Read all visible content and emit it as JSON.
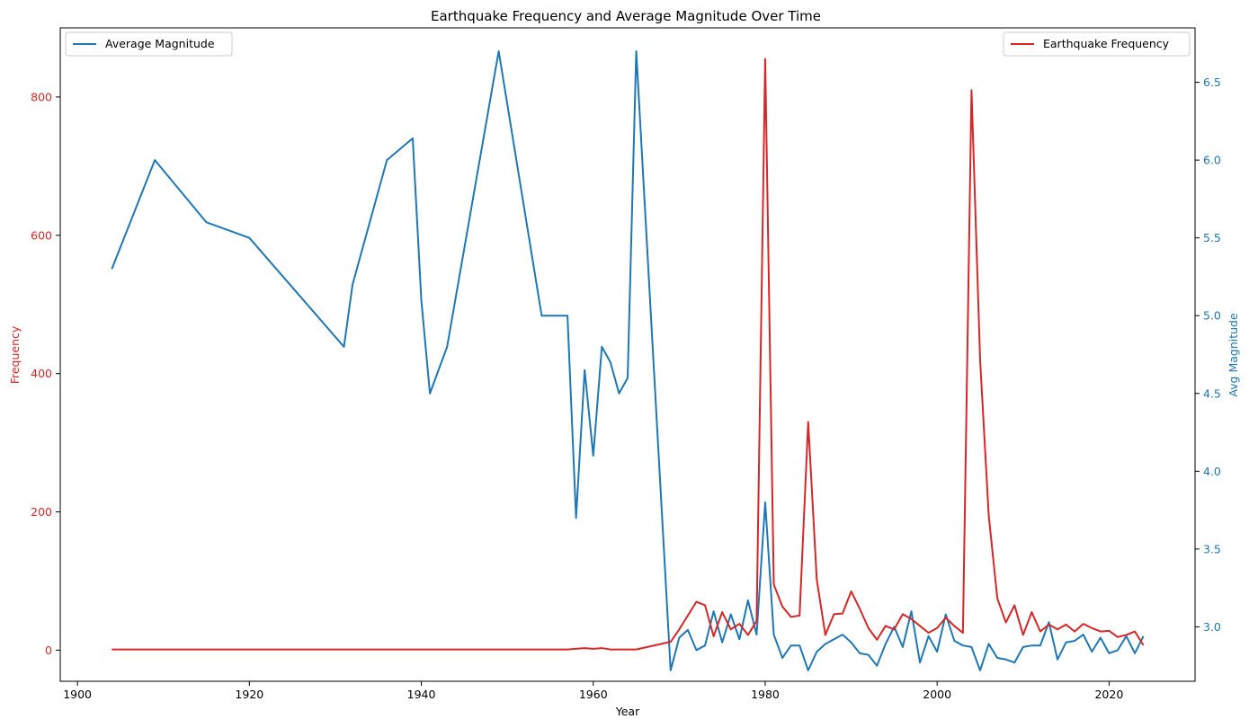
{
  "chart_data": {
    "type": "line",
    "title": "Earthquake Frequency and Average Magnitude Over Time",
    "xlabel": "Year",
    "ylabel_left": "Frequency",
    "ylabel_right": "Avg Magnitude",
    "xlim": [
      1898,
      2030
    ],
    "ylim_left": [
      -45,
      900
    ],
    "ylim_right": [
      2.65,
      6.85
    ],
    "x_ticks": [
      1900,
      1920,
      1940,
      1960,
      1980,
      2000,
      2020
    ],
    "y_left_ticks": [
      0,
      200,
      400,
      600,
      800
    ],
    "y_right_ticks": [
      3.0,
      3.5,
      4.0,
      4.5,
      5.0,
      5.5,
      6.0,
      6.5
    ],
    "grid": false,
    "colors": {
      "frequency": "#d62728",
      "magnitude": "#1f77b4"
    },
    "series": [
      {
        "name": "Average Magnitude",
        "axis": "right",
        "legend_position": "top-left",
        "points": [
          [
            1904,
            5.3
          ],
          [
            1909,
            6.0
          ],
          [
            1915,
            5.6
          ],
          [
            1920,
            5.5
          ],
          [
            1931,
            4.8
          ],
          [
            1932,
            5.2
          ],
          [
            1936,
            6.0
          ],
          [
            1939,
            6.14
          ],
          [
            1940,
            5.1
          ],
          [
            1941,
            4.5
          ],
          [
            1943,
            4.8
          ],
          [
            1949,
            6.7
          ],
          [
            1954,
            5.0
          ],
          [
            1957,
            5.0
          ],
          [
            1958,
            3.7
          ],
          [
            1959,
            4.65
          ],
          [
            1960,
            4.1
          ],
          [
            1961,
            4.8
          ],
          [
            1962,
            4.7
          ],
          [
            1963,
            4.5
          ],
          [
            1964,
            4.6
          ],
          [
            1965,
            6.7
          ],
          [
            1969,
            2.72
          ],
          [
            1970,
            2.93
          ],
          [
            1971,
            2.98
          ],
          [
            1972,
            2.85
          ],
          [
            1973,
            2.88
          ],
          [
            1974,
            3.1
          ],
          [
            1975,
            2.9
          ],
          [
            1976,
            3.08
          ],
          [
            1977,
            2.92
          ],
          [
            1978,
            3.17
          ],
          [
            1979,
            2.95
          ],
          [
            1980,
            3.8
          ],
          [
            1981,
            2.95
          ],
          [
            1982,
            2.8
          ],
          [
            1983,
            2.88
          ],
          [
            1984,
            2.88
          ],
          [
            1985,
            2.72
          ],
          [
            1986,
            2.84
          ],
          [
            1987,
            2.89
          ],
          [
            1988,
            2.92
          ],
          [
            1989,
            2.95
          ],
          [
            1990,
            2.9
          ],
          [
            1991,
            2.83
          ],
          [
            1992,
            2.82
          ],
          [
            1993,
            2.75
          ],
          [
            1994,
            2.89
          ],
          [
            1995,
            3.0
          ],
          [
            1996,
            2.87
          ],
          [
            1997,
            3.1
          ],
          [
            1998,
            2.77
          ],
          [
            1999,
            2.94
          ],
          [
            2000,
            2.84
          ],
          [
            2001,
            3.08
          ],
          [
            2002,
            2.91
          ],
          [
            2003,
            2.88
          ],
          [
            2004,
            2.87
          ],
          [
            2005,
            2.72
          ],
          [
            2006,
            2.89
          ],
          [
            2007,
            2.8
          ],
          [
            2008,
            2.79
          ],
          [
            2009,
            2.77
          ],
          [
            2010,
            2.87
          ],
          [
            2011,
            2.88
          ],
          [
            2012,
            2.88
          ],
          [
            2013,
            3.03
          ],
          [
            2014,
            2.79
          ],
          [
            2015,
            2.9
          ],
          [
            2016,
            2.91
          ],
          [
            2017,
            2.95
          ],
          [
            2018,
            2.84
          ],
          [
            2019,
            2.93
          ],
          [
            2020,
            2.83
          ],
          [
            2021,
            2.85
          ],
          [
            2022,
            2.94
          ],
          [
            2023,
            2.83
          ],
          [
            2024,
            2.94
          ]
        ]
      },
      {
        "name": "Earthquake Frequency",
        "axis": "left",
        "legend_position": "top-right",
        "points": [
          [
            1904,
            1
          ],
          [
            1957,
            1
          ],
          [
            1959,
            3
          ],
          [
            1960,
            2
          ],
          [
            1961,
            3
          ],
          [
            1962,
            1
          ],
          [
            1965,
            1
          ],
          [
            1969,
            12
          ],
          [
            1970,
            30
          ],
          [
            1971,
            50
          ],
          [
            1972,
            70
          ],
          [
            1973,
            65
          ],
          [
            1974,
            20
          ],
          [
            1975,
            55
          ],
          [
            1976,
            30
          ],
          [
            1977,
            38
          ],
          [
            1978,
            22
          ],
          [
            1979,
            42
          ],
          [
            1980,
            855
          ],
          [
            1981,
            95
          ],
          [
            1982,
            63
          ],
          [
            1983,
            48
          ],
          [
            1984,
            50
          ],
          [
            1985,
            330
          ],
          [
            1986,
            102
          ],
          [
            1987,
            22
          ],
          [
            1988,
            52
          ],
          [
            1989,
            53
          ],
          [
            1990,
            85
          ],
          [
            1991,
            60
          ],
          [
            1992,
            32
          ],
          [
            1993,
            15
          ],
          [
            1994,
            35
          ],
          [
            1995,
            30
          ],
          [
            1996,
            52
          ],
          [
            1997,
            45
          ],
          [
            1998,
            35
          ],
          [
            1999,
            25
          ],
          [
            2000,
            32
          ],
          [
            2001,
            47
          ],
          [
            2002,
            35
          ],
          [
            2003,
            25
          ],
          [
            2004,
            810
          ],
          [
            2005,
            420
          ],
          [
            2006,
            195
          ],
          [
            2007,
            75
          ],
          [
            2008,
            40
          ],
          [
            2009,
            65
          ],
          [
            2010,
            22
          ],
          [
            2011,
            55
          ],
          [
            2012,
            27
          ],
          [
            2013,
            37
          ],
          [
            2014,
            30
          ],
          [
            2015,
            37
          ],
          [
            2016,
            27
          ],
          [
            2017,
            38
          ],
          [
            2018,
            32
          ],
          [
            2019,
            27
          ],
          [
            2020,
            28
          ],
          [
            2021,
            19
          ],
          [
            2022,
            22
          ],
          [
            2023,
            27
          ],
          [
            2024,
            7
          ]
        ]
      }
    ]
  }
}
